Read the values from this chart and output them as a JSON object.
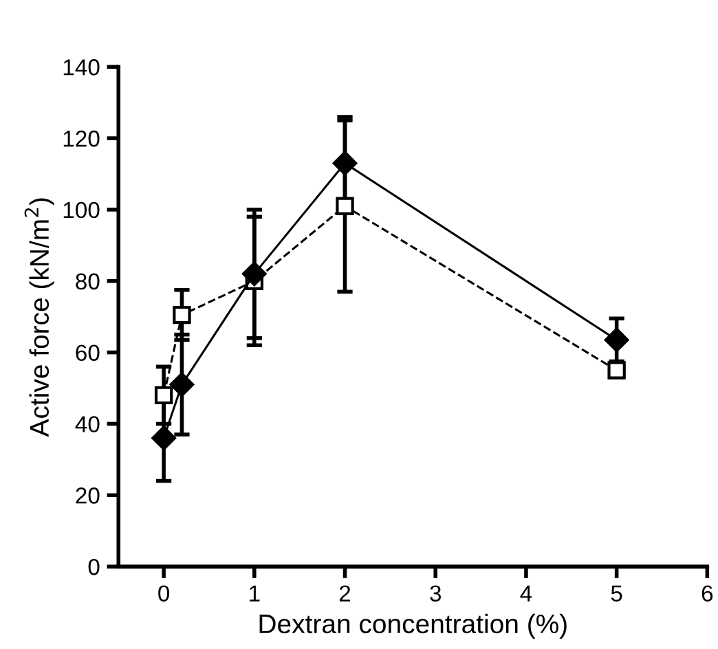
{
  "chart_data": {
    "type": "line",
    "xlabel": "Dextran concentration (%)",
    "ylabel": "Active force (kN/m$^{2}$)",
    "x": [
      0,
      0.2,
      1,
      2,
      5
    ],
    "series": [
      {
        "color": "#000000",
        "marker": "diamond",
        "line_style": "solid",
        "values": [
          36,
          51,
          82,
          113,
          63.5
        ],
        "errors": [
          12,
          14,
          18,
          13,
          6
        ]
      },
      {
        "color": "#000000",
        "marker": "square",
        "line_style": "dashed",
        "values": [
          48,
          70.5,
          80,
          101,
          55
        ],
        "errors": [
          8,
          7,
          18,
          24,
          2
        ]
      }
    ],
    "xlim": [
      -0.5,
      6
    ],
    "xticks": [
      0,
      1,
      2,
      3,
      4,
      5,
      6
    ],
    "ylim": [
      0,
      140
    ],
    "yticks": [
      0,
      20,
      40,
      60,
      80,
      100,
      120,
      140
    ],
    "grid": false,
    "legend": false
  }
}
